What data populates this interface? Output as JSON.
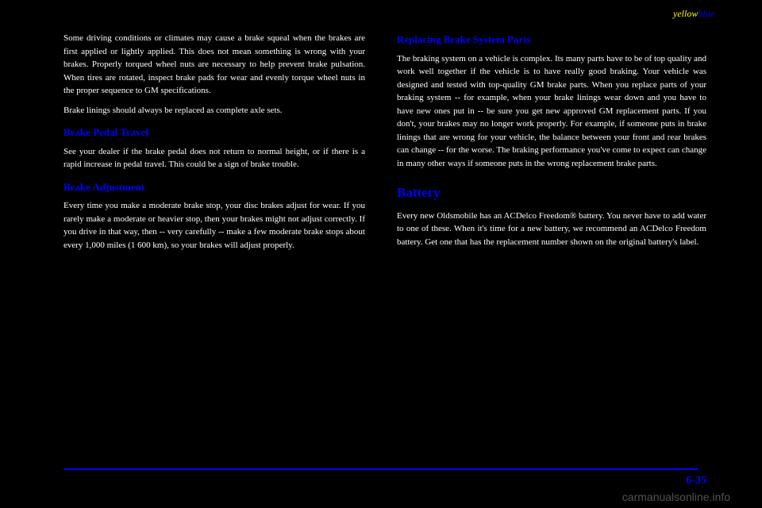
{
  "header": {
    "yellow": "yellow",
    "blue": "blue"
  },
  "left": {
    "p1": "Some driving conditions or climates may cause a brake squeal when the brakes are first applied or lightly applied. This does not mean something is wrong with your brakes. Properly torqued wheel nuts are necessary to help prevent brake pulsation. When tires are rotated, inspect brake pads for wear and evenly torque wheel nuts in the proper sequence to GM specifications.",
    "p2": "Brake linings should always be replaced as complete axle sets.",
    "h1": "Brake Pedal Travel",
    "p3": "See your dealer if the brake pedal does not return to normal height, or if there is a rapid increase in pedal travel. This could be a sign of brake trouble.",
    "h2": "Brake Adjustment",
    "p4": "Every time you make a moderate brake stop, your disc brakes adjust for wear. If you rarely make a moderate or heavier stop, then your brakes might not adjust correctly. If you drive in that way, then -- very carefully -- make a few moderate brake stops about every 1,000 miles (1 600 km), so your brakes will adjust properly."
  },
  "right": {
    "h1": "Replacing Brake System Parts",
    "p1": "The braking system on a vehicle is complex. Its many parts have to be of top quality and work well together if the vehicle is to have really good braking. Your vehicle was designed and tested with top-quality GM brake parts. When you replace parts of your braking system -- for example, when your brake linings wear down and you have to have new ones put in -- be sure you get new approved GM replacement parts. If you don't, your brakes may no longer work properly. For example, if someone puts in brake linings that are wrong for your vehicle, the balance between your front and rear brakes can change -- for the worse. The braking performance you've come to expect can change in many other ways if someone puts in the wrong replacement brake parts.",
    "h2": "Battery",
    "p2": "Every new Oldsmobile has an ACDelco Freedom® battery. You never have to add water to one of these. When it's time for a new battery, we recommend an ACDelco Freedom battery. Get one that has the replacement number shown on the original battery's label."
  },
  "pageNum": "6-35",
  "watermark": "carmanualsonline.info"
}
